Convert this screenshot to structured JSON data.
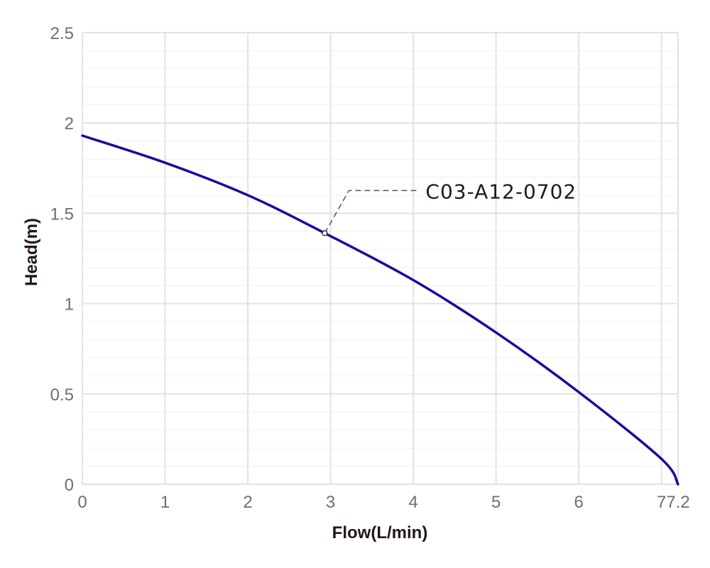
{
  "chart_data": {
    "type": "line",
    "title": "",
    "xlabel": "Flow(L/min)",
    "ylabel": "Head(m)",
    "xlim": [
      0,
      7.2
    ],
    "ylim": [
      0,
      2.5
    ],
    "x_ticks": [
      0,
      1,
      2,
      3,
      4,
      5,
      6,
      7,
      7.2
    ],
    "x_tick_labels": [
      "0",
      "1",
      "2",
      "3",
      "4",
      "5",
      "6",
      "7",
      "7.2"
    ],
    "y_ticks": [
      0,
      0.5,
      1,
      1.5,
      2,
      2.5
    ],
    "y_tick_labels": [
      "0",
      "0.5",
      "1",
      "1.5",
      "2",
      "2.5"
    ],
    "grid": true,
    "minor_grid_step": 0.1,
    "series": [
      {
        "name": "C03-A12-0702",
        "color": "#1a0aa0",
        "x": [
          0,
          1,
          2,
          2.93,
          4,
          5,
          6,
          7,
          7.2
        ],
        "y": [
          1.93,
          1.78,
          1.6,
          1.39,
          1.13,
          0.84,
          0.51,
          0.14,
          0.0
        ]
      }
    ],
    "annotations": [
      {
        "text": "C03-A12-0702",
        "point": [
          2.93,
          1.39
        ],
        "series": "C03-A12-0702"
      }
    ]
  }
}
